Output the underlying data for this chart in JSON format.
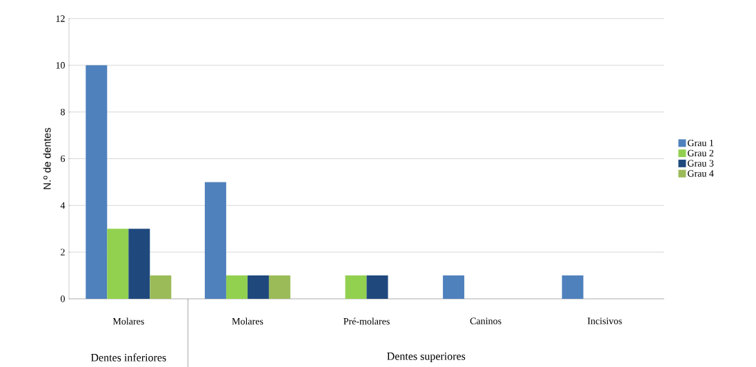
{
  "chart_data": {
    "type": "bar",
    "ylabel": "N.º de dentes",
    "categories": [
      "Molares",
      "Molares",
      "Pré-molares",
      "Caninos",
      "Incisivos"
    ],
    "series": [
      {
        "name": "Grau 1",
        "color": "#4f81bd",
        "values": [
          10,
          5,
          0,
          1,
          1
        ]
      },
      {
        "name": "Grau 2",
        "color": "#92d050",
        "values": [
          3,
          1,
          1,
          0,
          0
        ]
      },
      {
        "name": "Grau 3",
        "color": "#1f497d",
        "values": [
          3,
          1,
          1,
          0,
          0
        ]
      },
      {
        "name": "Grau 4",
        "color": "#9bbb59",
        "values": [
          1,
          1,
          0,
          0,
          0
        ]
      }
    ],
    "ylim": [
      0,
      12
    ],
    "yticks": [
      0,
      2,
      4,
      6,
      8,
      10,
      12
    ],
    "grid": "y",
    "legend": "right",
    "annotations": [
      "Dentes inferiores",
      "Dentes superiores"
    ]
  }
}
